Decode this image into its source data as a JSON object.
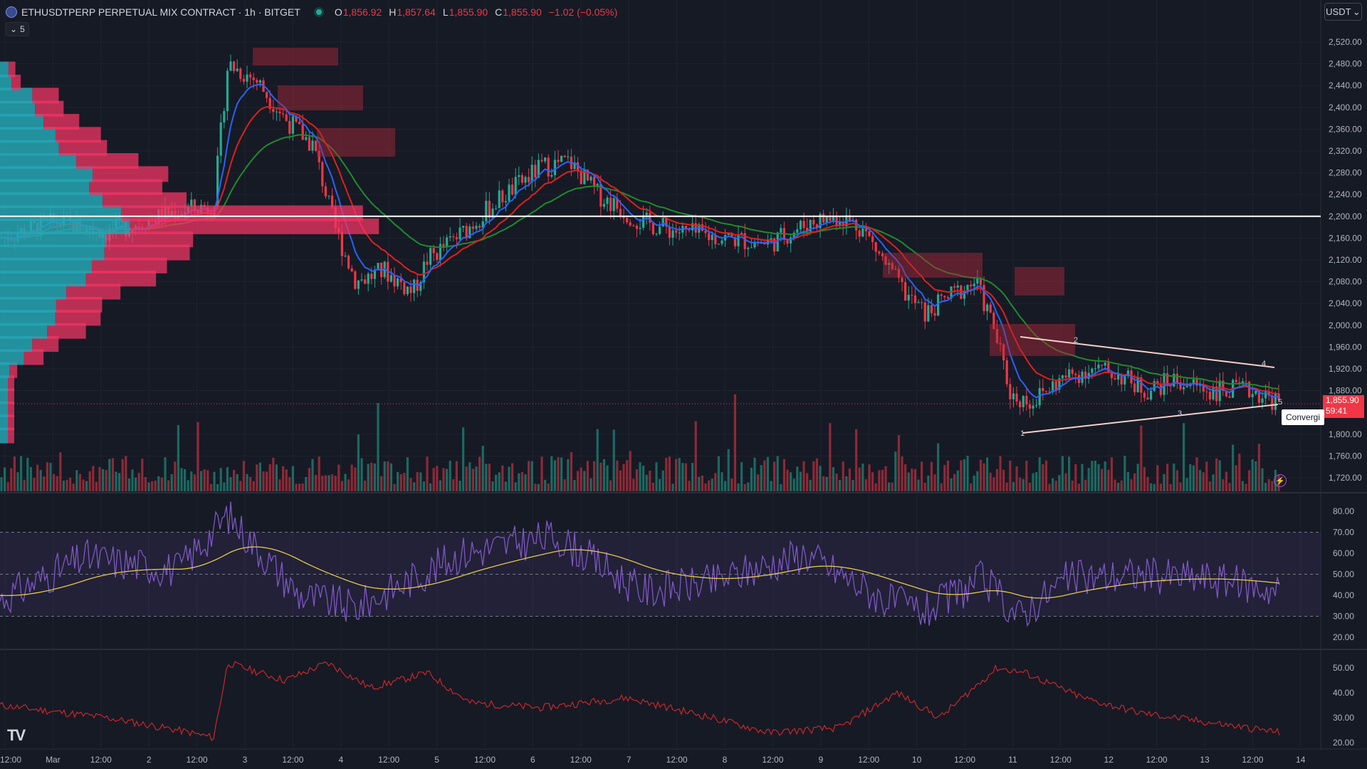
{
  "header": {
    "symbol_title": "ETHUSDTPERP PERPETUAL MIX CONTRACT · 1h · BITGET",
    "o_key": "O",
    "o_val": "1,856.92",
    "h_key": "H",
    "h_val": "1,857.64",
    "l_key": "L",
    "l_val": "1,855.90",
    "c_key": "C",
    "c_val": "1,855.90",
    "change": "−1.02 (−0.05%)"
  },
  "indicator_toggle": {
    "chevron": "⌄",
    "count": "5"
  },
  "currency_selector": {
    "value": "USDT",
    "chevron": "⌄"
  },
  "price_axis": [
    "2,520.00",
    "2,480.00",
    "2,440.00",
    "2,400.00",
    "2,360.00",
    "2,320.00",
    "2,280.00",
    "2,240.00",
    "2,200.00",
    "2,160.00",
    "2,120.00",
    "2,080.00",
    "2,040.00",
    "2,000.00",
    "1,960.00",
    "1,920.00",
    "1,880.00",
    "1,800.00",
    "1,760.00",
    "1,720.00"
  ],
  "rsi_axis": [
    "80.00",
    "70.00",
    "60.00",
    "50.00",
    "40.00",
    "30.00",
    "20.00"
  ],
  "osc_axis": [
    "50.00",
    "40.00",
    "30.00",
    "20.00"
  ],
  "time_axis": [
    "12:00",
    "Mar",
    "12:00",
    "2",
    "12:00",
    "3",
    "12:00",
    "4",
    "12:00",
    "5",
    "12:00",
    "6",
    "12:00",
    "7",
    "12:00",
    "8",
    "12:00",
    "9",
    "12:00",
    "10",
    "12:00",
    "11",
    "12:00",
    "12",
    "12:00",
    "13",
    "12:00",
    "14"
  ],
  "last_price": {
    "value": "1,855.90",
    "countdown": "59:41"
  },
  "pattern": {
    "label": "Convergi",
    "points": [
      "1",
      "2",
      "3",
      "4",
      "5"
    ]
  },
  "colors": {
    "background": "#161a25",
    "up": "#22ab94",
    "down": "#f23645",
    "ema_fast": "#2962ff",
    "ema_mid": "#e0201c",
    "ema_slow": "#1f8b2c",
    "rsi": "#7e57c2",
    "rsi_ma": "#e6c84a",
    "osc": "#c62828"
  },
  "icons": {
    "symbol": "ethereum-icon",
    "logo": "tradingview-logo",
    "alert": "lightning-icon"
  },
  "logo_text": "TV"
}
